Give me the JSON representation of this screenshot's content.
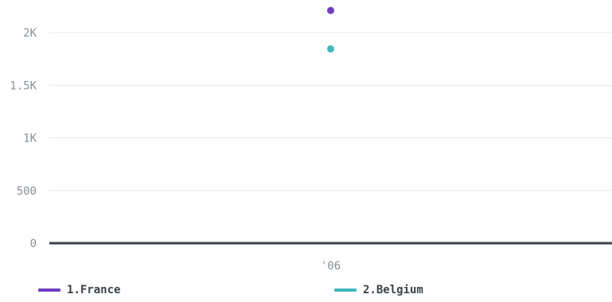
{
  "chart_data": {
    "type": "scatter",
    "categories": [
      "'06"
    ],
    "ylim": [
      0,
      2200
    ],
    "yticks": [
      {
        "value": 0,
        "label": "0"
      },
      {
        "value": 500,
        "label": "500"
      },
      {
        "value": 1000,
        "label": "1K"
      },
      {
        "value": 1500,
        "label": "1.5K"
      },
      {
        "value": 2000,
        "label": "2K"
      }
    ],
    "grid": true,
    "legend_position": "bottom",
    "series": [
      {
        "name": "1.France",
        "color": "#6f3fc1",
        "values": [
          2210
        ]
      },
      {
        "name": "2.Belgium",
        "color": "#3fb7bd",
        "values": [
          1845
        ]
      }
    ]
  }
}
